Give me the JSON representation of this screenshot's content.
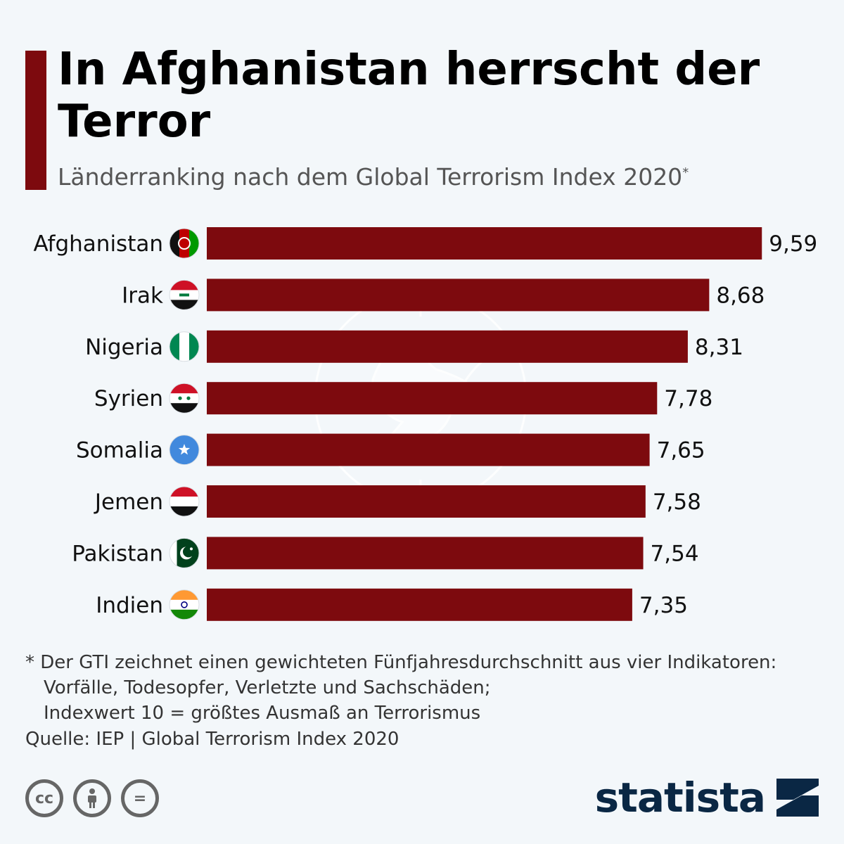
{
  "header": {
    "title": "In Afghanistan herrscht der Terror",
    "subtitle": "Länderranking nach dem Global Terrorism Index 2020",
    "subtitle_marker": "*"
  },
  "chart_data": {
    "type": "bar",
    "orientation": "horizontal",
    "categories": [
      "Afghanistan",
      "Irak",
      "Nigeria",
      "Syrien",
      "Somalia",
      "Jemen",
      "Pakistan",
      "Indien"
    ],
    "values": [
      9.59,
      8.68,
      8.31,
      7.78,
      7.65,
      7.58,
      7.54,
      7.35
    ],
    "value_labels": [
      "9,59",
      "8,68",
      "8,31",
      "7,78",
      "7,65",
      "7,58",
      "7,54",
      "7,35"
    ],
    "xlim": [
      0,
      10
    ],
    "grid": false,
    "bar_color": "#7d0a0e",
    "flag_icons": [
      "afghanistan-flag-icon",
      "iraq-flag-icon",
      "nigeria-flag-icon",
      "syria-flag-icon",
      "somalia-flag-icon",
      "yemen-flag-icon",
      "pakistan-flag-icon",
      "india-flag-icon"
    ]
  },
  "footnote": {
    "line1": "* Der GTI zeichnet einen gewichteten Fünfjahresdurchschnitt aus vier Indikatoren:",
    "line2": "Vorfälle, Todesopfer, Verletzte und Sachschäden;",
    "line3": "Indexwert 10 = größtes Ausmaß an Terrorismus"
  },
  "source": "Quelle: IEP | Global Terrorism Index 2020",
  "license_icons": [
    "cc-icon",
    "attribution-icon",
    "no-derivatives-icon"
  ],
  "brand": {
    "name": "statista",
    "color": "#0a2744"
  }
}
